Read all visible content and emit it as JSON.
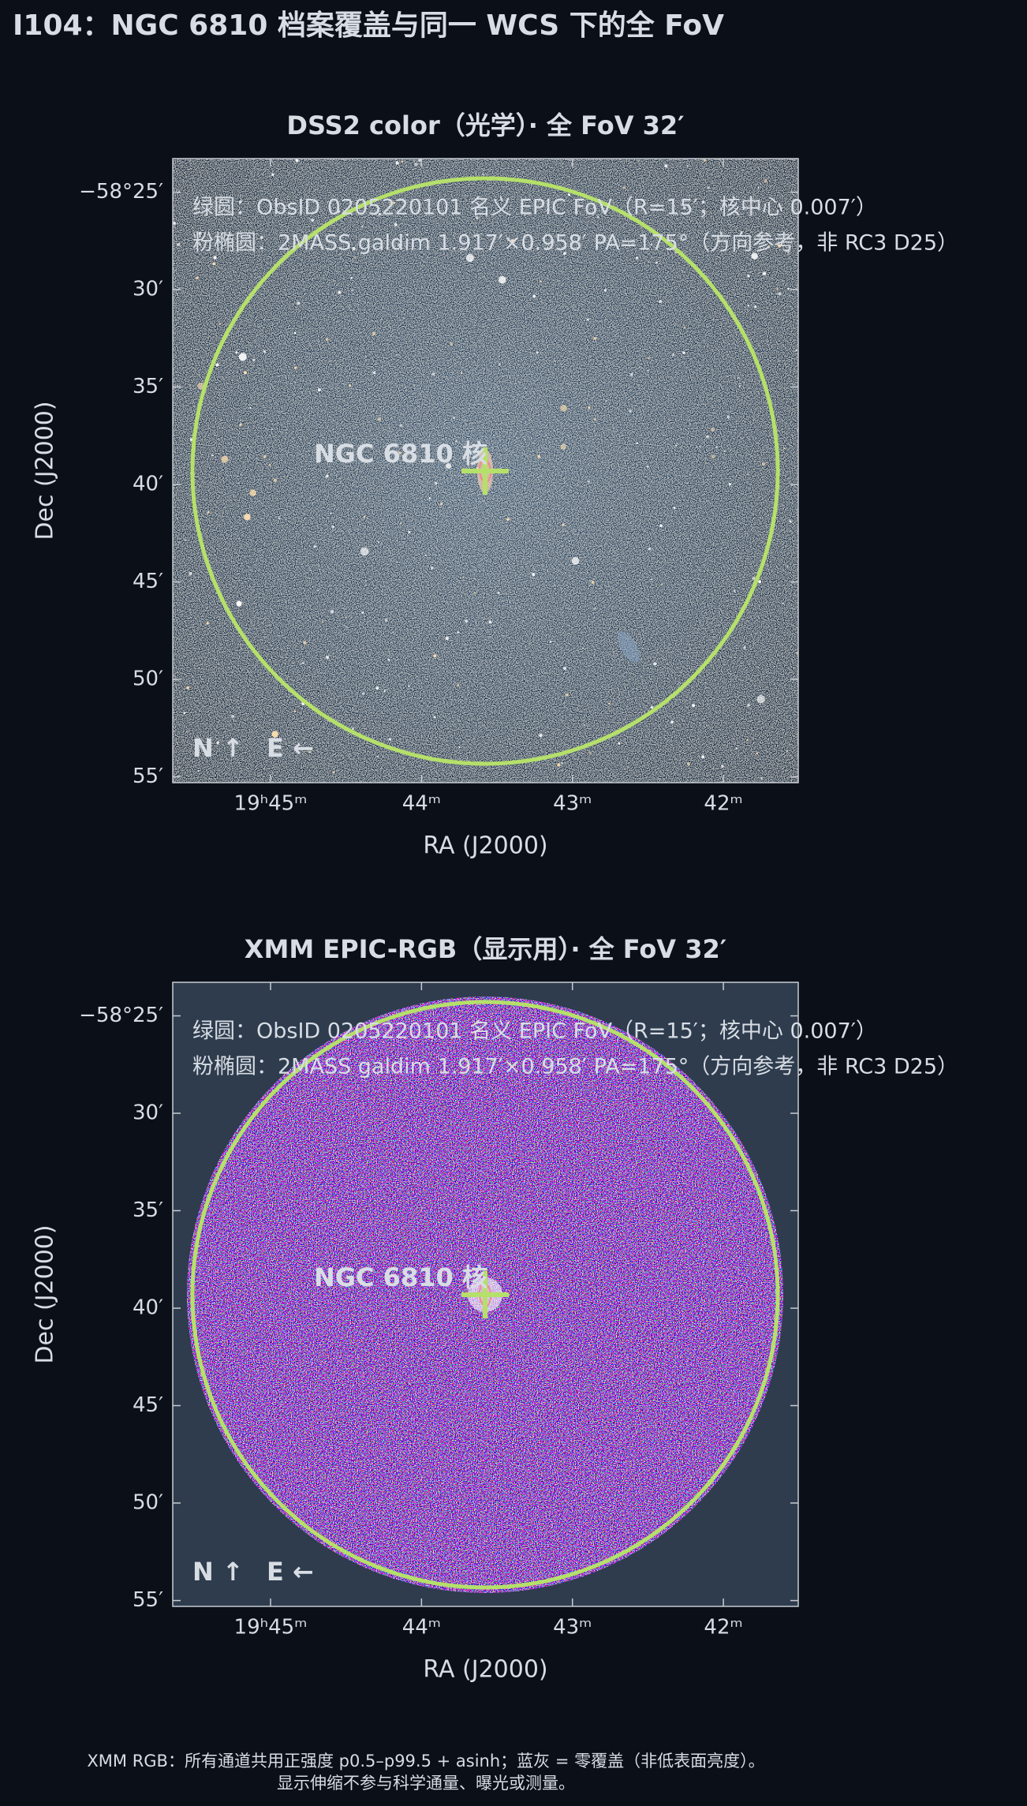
{
  "title": "I104：NGC 6810 档案覆盖与同一 WCS 下的全 FoV",
  "footer": [
    "XMM RGB：所有通道共用正强度 p0.5–p99.5 + asinh；蓝灰 = 零覆盖（非低表面亮度）。",
    "显示伸缩不参与科学通量、曝光或测量。"
  ],
  "chart_data": [
    {
      "type": "image",
      "title": "DSS2 color（光学）· 全 FoV 32′",
      "xlabel": "RA (J2000)",
      "ylabel": "Dec (J2000)",
      "xlim": [
        296.412,
        295.376
      ],
      "ylim": [
        -58.9217,
        -58.388
      ],
      "xticks": [
        {
          "value": 296.25,
          "label": "19ʰ45ᵐ"
        },
        {
          "value": 296.0,
          "label": "44ᵐ"
        },
        {
          "value": 295.75,
          "label": "43ᵐ"
        },
        {
          "value": 295.5,
          "label": "42ᵐ"
        }
      ],
      "yticks": [
        {
          "value": -58.4167,
          "label": "−58°25′"
        },
        {
          "value": -58.5,
          "label": "30′"
        },
        {
          "value": -58.5833,
          "label": "35′"
        },
        {
          "value": -58.6667,
          "label": "40′"
        },
        {
          "value": -58.75,
          "label": "45′"
        },
        {
          "value": -58.8333,
          "label": "50′"
        },
        {
          "value": -58.9167,
          "label": "55′"
        }
      ],
      "annotations": [
        "绿圆：ObsID 0205220101 名义 EPIC FoV（R=15′；核中心 0.007′）",
        "粉椭圆：2MASS galdim 1.917′×0.958′ PA=175°（方向参考，非 RC3 D25）",
        "NGC 6810 核",
        "N ↑",
        "E ←"
      ]
    },
    {
      "type": "image",
      "title": "XMM EPIC-RGB（显示用）· 全 FoV 32′",
      "xlabel": "RA (J2000)",
      "ylabel": "Dec (J2000)",
      "xlim": [
        296.412,
        295.376
      ],
      "ylim": [
        -58.9217,
        -58.388
      ],
      "xticks": [
        {
          "value": 296.25,
          "label": "19ʰ45ᵐ"
        },
        {
          "value": 296.0,
          "label": "44ᵐ"
        },
        {
          "value": 295.75,
          "label": "43ᵐ"
        },
        {
          "value": 295.5,
          "label": "42ᵐ"
        }
      ],
      "yticks": [
        {
          "value": -58.4167,
          "label": "−58°25′"
        },
        {
          "value": -58.5,
          "label": "30′"
        },
        {
          "value": -58.5833,
          "label": "35′"
        },
        {
          "value": -58.6667,
          "label": "40′"
        },
        {
          "value": -58.75,
          "label": "45′"
        },
        {
          "value": -58.8333,
          "label": "50′"
        },
        {
          "value": -58.9167,
          "label": "55′"
        }
      ],
      "annotations": [
        "绿圆：ObsID 0205220101 名义 EPIC FoV（R=15′；核中心 0.007′）",
        "粉椭圆：2MASS galdim 1.917′×0.958′ PA=175°（方向参考，非 RC3 D25）",
        "NGC 6810 核",
        "N ↑",
        "E ←"
      ]
    }
  ]
}
